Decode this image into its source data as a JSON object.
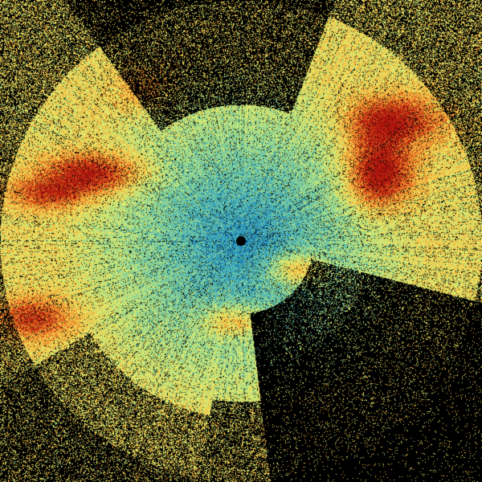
{
  "radar": {
    "colormap": [
      "#0b4f96",
      "#1f8fc4",
      "#58bfb0",
      "#a6dc84",
      "#eef06a",
      "#f4b43a",
      "#e0601e",
      "#a8100c"
    ],
    "background": "#000000"
  }
}
